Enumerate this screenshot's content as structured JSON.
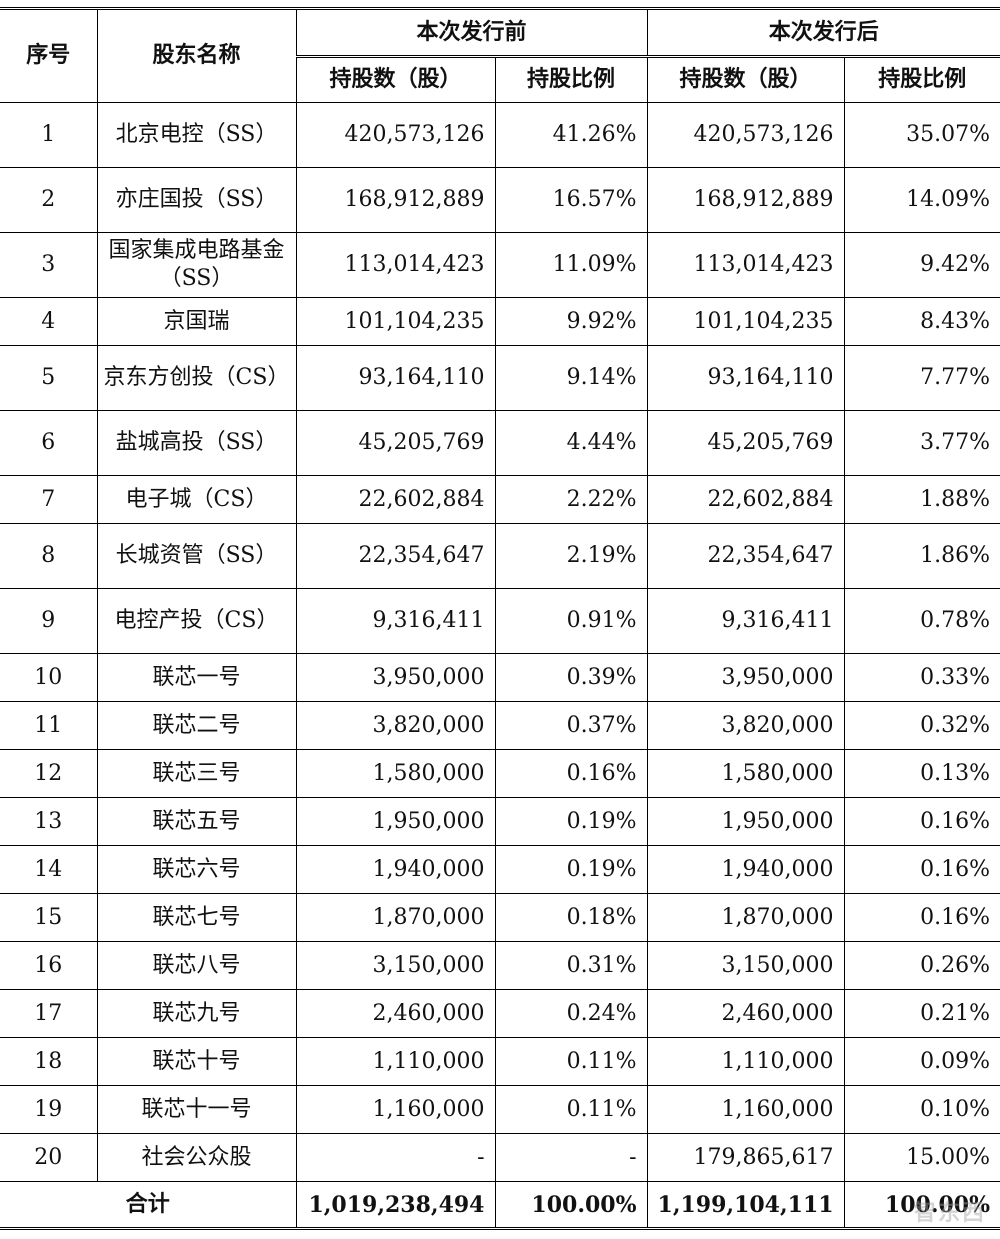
{
  "headers": {
    "seq": "序号",
    "name": "股东名称",
    "before": "本次发行前",
    "after": "本次发行后",
    "shares": "持股数（股）",
    "ratio": "持股比例"
  },
  "rows": [
    {
      "seq": "1",
      "name": "北京电控（SS）",
      "before_shares": "420,573,126",
      "before_ratio": "41.26%",
      "after_shares": "420,573,126",
      "after_ratio": "35.07%"
    },
    {
      "seq": "2",
      "name": "亦庄国投（SS）",
      "before_shares": "168,912,889",
      "before_ratio": "16.57%",
      "after_shares": "168,912,889",
      "after_ratio": "14.09%"
    },
    {
      "seq": "3",
      "name": "国家集成电路基金（SS）",
      "before_shares": "113,014,423",
      "before_ratio": "11.09%",
      "after_shares": "113,014,423",
      "after_ratio": "9.42%"
    },
    {
      "seq": "4",
      "name": "京国瑞",
      "before_shares": "101,104,235",
      "before_ratio": "9.92%",
      "after_shares": "101,104,235",
      "after_ratio": "8.43%"
    },
    {
      "seq": "5",
      "name": "京东方创投（CS）",
      "before_shares": "93,164,110",
      "before_ratio": "9.14%",
      "after_shares": "93,164,110",
      "after_ratio": "7.77%"
    },
    {
      "seq": "6",
      "name": "盐城高投（SS）",
      "before_shares": "45,205,769",
      "before_ratio": "4.44%",
      "after_shares": "45,205,769",
      "after_ratio": "3.77%"
    },
    {
      "seq": "7",
      "name": "电子城（CS）",
      "before_shares": "22,602,884",
      "before_ratio": "2.22%",
      "after_shares": "22,602,884",
      "after_ratio": "1.88%"
    },
    {
      "seq": "8",
      "name": "长城资管（SS）",
      "before_shares": "22,354,647",
      "before_ratio": "2.19%",
      "after_shares": "22,354,647",
      "after_ratio": "1.86%"
    },
    {
      "seq": "9",
      "name": "电控产投（CS）",
      "before_shares": "9,316,411",
      "before_ratio": "0.91%",
      "after_shares": "9,316,411",
      "after_ratio": "0.78%"
    },
    {
      "seq": "10",
      "name": "联芯一号",
      "before_shares": "3,950,000",
      "before_ratio": "0.39%",
      "after_shares": "3,950,000",
      "after_ratio": "0.33%"
    },
    {
      "seq": "11",
      "name": "联芯二号",
      "before_shares": "3,820,000",
      "before_ratio": "0.37%",
      "after_shares": "3,820,000",
      "after_ratio": "0.32%"
    },
    {
      "seq": "12",
      "name": "联芯三号",
      "before_shares": "1,580,000",
      "before_ratio": "0.16%",
      "after_shares": "1,580,000",
      "after_ratio": "0.13%"
    },
    {
      "seq": "13",
      "name": "联芯五号",
      "before_shares": "1,950,000",
      "before_ratio": "0.19%",
      "after_shares": "1,950,000",
      "after_ratio": "0.16%"
    },
    {
      "seq": "14",
      "name": "联芯六号",
      "before_shares": "1,940,000",
      "before_ratio": "0.19%",
      "after_shares": "1,940,000",
      "after_ratio": "0.16%"
    },
    {
      "seq": "15",
      "name": "联芯七号",
      "before_shares": "1,870,000",
      "before_ratio": "0.18%",
      "after_shares": "1,870,000",
      "after_ratio": "0.16%"
    },
    {
      "seq": "16",
      "name": "联芯八号",
      "before_shares": "3,150,000",
      "before_ratio": "0.31%",
      "after_shares": "3,150,000",
      "after_ratio": "0.26%"
    },
    {
      "seq": "17",
      "name": "联芯九号",
      "before_shares": "2,460,000",
      "before_ratio": "0.24%",
      "after_shares": "2,460,000",
      "after_ratio": "0.21%"
    },
    {
      "seq": "18",
      "name": "联芯十号",
      "before_shares": "1,110,000",
      "before_ratio": "0.11%",
      "after_shares": "1,110,000",
      "after_ratio": "0.09%"
    },
    {
      "seq": "19",
      "name": "联芯十一号",
      "before_shares": "1,160,000",
      "before_ratio": "0.11%",
      "after_shares": "1,160,000",
      "after_ratio": "0.10%"
    },
    {
      "seq": "20",
      "name": "社会公众股",
      "before_shares": "-",
      "before_ratio": "-",
      "after_shares": "179,865,617",
      "after_ratio": "15.00%"
    }
  ],
  "total": {
    "label": "合计",
    "before_shares": "1,019,238,494",
    "before_ratio": "100.00%",
    "after_shares": "1,199,104,111",
    "after_ratio": "100.00%"
  },
  "watermark": "智东西"
}
